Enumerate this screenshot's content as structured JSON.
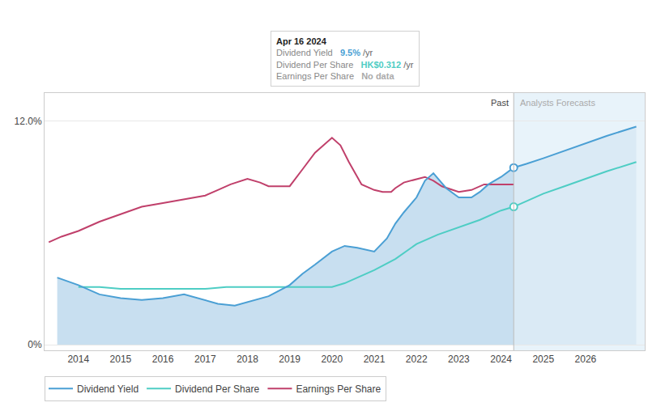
{
  "chart_data": {
    "type": "line",
    "xlim": [
      2013.2,
      2027.4
    ],
    "xticks": [
      2014,
      2015,
      2016,
      2017,
      2018,
      2019,
      2020,
      2021,
      2022,
      2023,
      2024,
      2025,
      2026
    ],
    "ylim": [
      -0.003,
      0.135
    ],
    "yticks": [
      {
        "value": 0.0,
        "label": "0%"
      },
      {
        "value": 0.12,
        "label": "12.0%"
      }
    ],
    "grid": "y",
    "grid_color": "#e8e8e8",
    "legend": "bottom left",
    "series": [
      {
        "name": "Dividend Yield",
        "color": "#4a9fd4",
        "fill_color": "#c8dff0",
        "end_marker": true,
        "x": [
          2013.5,
          2014.0,
          2014.5,
          2015.0,
          2015.5,
          2016.0,
          2016.5,
          2017.0,
          2017.3,
          2017.7,
          2018.0,
          2018.5,
          2019.0,
          2019.3,
          2019.6,
          2020.0,
          2020.3,
          2020.6,
          2021.0,
          2021.3,
          2021.5,
          2021.7,
          2022.0,
          2022.2,
          2022.4,
          2022.7,
          2023.0,
          2023.3,
          2023.5,
          2023.7,
          2024.0,
          2024.3
        ],
        "values": [
          0.036,
          0.032,
          0.027,
          0.025,
          0.024,
          0.025,
          0.027,
          0.024,
          0.022,
          0.021,
          0.023,
          0.026,
          0.032,
          0.038,
          0.043,
          0.05,
          0.053,
          0.052,
          0.05,
          0.057,
          0.065,
          0.071,
          0.079,
          0.088,
          0.092,
          0.084,
          0.079,
          0.079,
          0.082,
          0.086,
          0.09,
          0.095
        ],
        "forecast": {
          "fill_color": "#daeaf5",
          "x": [
            2024.3,
            2024.6,
            2025.0,
            2025.5,
            2026.0,
            2026.5,
            2027.2
          ],
          "values": [
            0.095,
            0.097,
            0.1,
            0.104,
            0.108,
            0.112,
            0.117
          ]
        }
      },
      {
        "name": "Dividend Per Share",
        "color": "#4ecdc4",
        "end_marker": true,
        "x": [
          2014.0,
          2014.5,
          2015.0,
          2015.5,
          2016.0,
          2016.5,
          2017.0,
          2017.5,
          2018.0,
          2018.5,
          2019.0,
          2019.5,
          2020.0,
          2020.3,
          2020.6,
          2021.0,
          2021.5,
          2022.0,
          2022.5,
          2023.0,
          2023.5,
          2024.0,
          2024.3
        ],
        "values": [
          0.031,
          0.031,
          0.03,
          0.03,
          0.03,
          0.03,
          0.03,
          0.031,
          0.031,
          0.031,
          0.031,
          0.031,
          0.031,
          0.033,
          0.036,
          0.04,
          0.046,
          0.054,
          0.059,
          0.063,
          0.067,
          0.072,
          0.074
        ],
        "forecast": {
          "x": [
            2024.3,
            2024.6,
            2025.0,
            2025.5,
            2026.0,
            2026.5,
            2027.2
          ],
          "values": [
            0.074,
            0.077,
            0.081,
            0.085,
            0.089,
            0.093,
            0.098
          ]
        }
      },
      {
        "name": "Earnings Per Share",
        "color": "#c0406b",
        "x": [
          2013.3,
          2013.6,
          2014.0,
          2014.5,
          2015.0,
          2015.5,
          2016.0,
          2016.5,
          2017.0,
          2017.3,
          2017.6,
          2018.0,
          2018.3,
          2018.5,
          2019.0,
          2019.3,
          2019.6,
          2020.0,
          2020.2,
          2020.4,
          2020.7,
          2021.0,
          2021.2,
          2021.4,
          2021.5,
          2021.7,
          2022.0,
          2022.2,
          2022.4,
          2022.6,
          2023.0,
          2023.3,
          2023.6,
          2024.0,
          2024.3
        ],
        "values": [
          0.055,
          0.058,
          0.061,
          0.066,
          0.07,
          0.074,
          0.076,
          0.078,
          0.08,
          0.083,
          0.086,
          0.089,
          0.087,
          0.085,
          0.085,
          0.094,
          0.103,
          0.111,
          0.107,
          0.098,
          0.086,
          0.083,
          0.082,
          0.082,
          0.084,
          0.087,
          0.089,
          0.09,
          0.088,
          0.085,
          0.082,
          0.083,
          0.086,
          0.086,
          0.086
        ]
      }
    ],
    "divider": {
      "x": 2024.3,
      "color": "#bbbbbb"
    },
    "forecast_band": {
      "color": "#e8f3fa"
    },
    "annotations": [
      {
        "text": "Past",
        "x": 2024.3,
        "align": "right",
        "color": "#444444"
      },
      {
        "text": "Analysts Forecasts",
        "x": 2024.3,
        "align": "left",
        "color": "#aaaaaa"
      }
    ],
    "tooltip": {
      "title": "Apr 16 2024",
      "rows": [
        {
          "label": "Dividend Yield",
          "value": "9.5%",
          "unit": "/yr",
          "color": "#4a9fd4"
        },
        {
          "label": "Dividend Per Share",
          "value": "HK$0.312",
          "unit": "/yr",
          "color": "#4ecdc4"
        },
        {
          "label": "Earnings Per Share",
          "value": "No data",
          "color": "#aaaaaa"
        }
      ]
    }
  }
}
